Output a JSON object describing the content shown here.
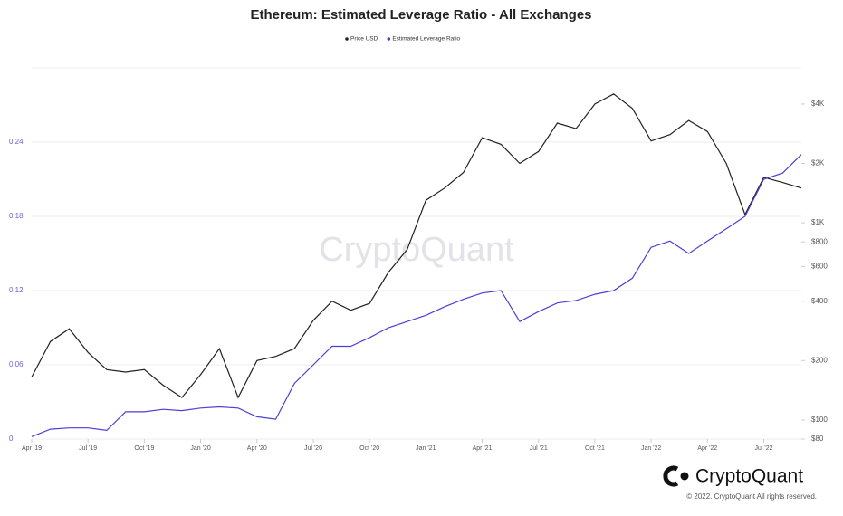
{
  "chart_data": {
    "type": "line",
    "title": "Ethereum: Estimated Leverage Ratio - All Exchanges",
    "watermark": "CryptoQuant",
    "brand": "CryptoQuant",
    "copyright": "© 2022. CryptoQuant All rights reserved.",
    "x": [
      "2019-04",
      "2019-05",
      "2019-06",
      "2019-07",
      "2019-08",
      "2019-09",
      "2019-10",
      "2019-11",
      "2019-12",
      "2020-01",
      "2020-02",
      "2020-03",
      "2020-04",
      "2020-05",
      "2020-06",
      "2020-07",
      "2020-08",
      "2020-09",
      "2020-10",
      "2020-11",
      "2020-12",
      "2021-01",
      "2021-02",
      "2021-03",
      "2021-04",
      "2021-05",
      "2021-06",
      "2021-07",
      "2021-08",
      "2021-09",
      "2021-10",
      "2021-11",
      "2021-12",
      "2022-01",
      "2022-02",
      "2022-03",
      "2022-04",
      "2022-05",
      "2022-06",
      "2022-07",
      "2022-08",
      "2022-09"
    ],
    "xticks": [
      {
        "value": "2019-04",
        "label": "Apr '19"
      },
      {
        "value": "2019-07",
        "label": "Jul '19"
      },
      {
        "value": "2019-10",
        "label": "Oct '19"
      },
      {
        "value": "2020-01",
        "label": "Jan '20"
      },
      {
        "value": "2020-04",
        "label": "Apr '20"
      },
      {
        "value": "2020-07",
        "label": "Jul '20"
      },
      {
        "value": "2020-10",
        "label": "Oct '20"
      },
      {
        "value": "2021-01",
        "label": "Jan '21"
      },
      {
        "value": "2021-04",
        "label": "Apr '21"
      },
      {
        "value": "2021-07",
        "label": "Jul '21"
      },
      {
        "value": "2021-10",
        "label": "Oct '21"
      },
      {
        "value": "2022-01",
        "label": "Jan '22"
      },
      {
        "value": "2022-04",
        "label": "Apr '22"
      },
      {
        "value": "2022-07",
        "label": "Jul '22"
      }
    ],
    "series": [
      {
        "name": "Price USD",
        "color": "#222222",
        "axis": "y2",
        "values": [
          165,
          250,
          290,
          220,
          180,
          175,
          180,
          150,
          130,
          170,
          230,
          130,
          200,
          210,
          230,
          320,
          400,
          360,
          390,
          560,
          730,
          1300,
          1500,
          1800,
          2700,
          2500,
          2000,
          2300,
          3200,
          3000,
          4000,
          4500,
          3800,
          2600,
          2800,
          3300,
          2900,
          2000,
          1100,
          1700,
          1600,
          1500
        ]
      },
      {
        "name": "Estimated Leverage Ratio",
        "color": "#4b3fd4",
        "values": [
          0.002,
          0.008,
          0.009,
          0.009,
          0.007,
          0.022,
          0.022,
          0.024,
          0.023,
          0.025,
          0.026,
          0.025,
          0.018,
          0.016,
          0.045,
          0.06,
          0.075,
          0.075,
          0.082,
          0.09,
          0.095,
          0.1,
          0.107,
          0.113,
          0.118,
          0.12,
          0.095,
          0.103,
          0.11,
          0.112,
          0.117,
          0.12,
          0.13,
          0.155,
          0.16,
          0.15,
          0.16,
          0.17,
          0.18,
          0.21,
          0.215,
          0.23
        ]
      }
    ],
    "ylim": [
      0,
      0.3
    ],
    "yticks": [
      0,
      0.06,
      0.12,
      0.18,
      0.24
    ],
    "ycolor": "#6a5fe0",
    "y2lim": [
      80,
      6100
    ],
    "y2scale": "log",
    "y2ticks": [
      {
        "value": 80,
        "label": "$80"
      },
      {
        "value": 100,
        "label": "$100"
      },
      {
        "value": 200,
        "label": "$200"
      },
      {
        "value": 400,
        "label": "$400"
      },
      {
        "value": 600,
        "label": "$600"
      },
      {
        "value": 800,
        "label": "$800"
      },
      {
        "value": 1000,
        "label": "$1K"
      },
      {
        "value": 2000,
        "label": "$2K"
      },
      {
        "value": 4000,
        "label": "$4K"
      }
    ],
    "grid": true
  }
}
